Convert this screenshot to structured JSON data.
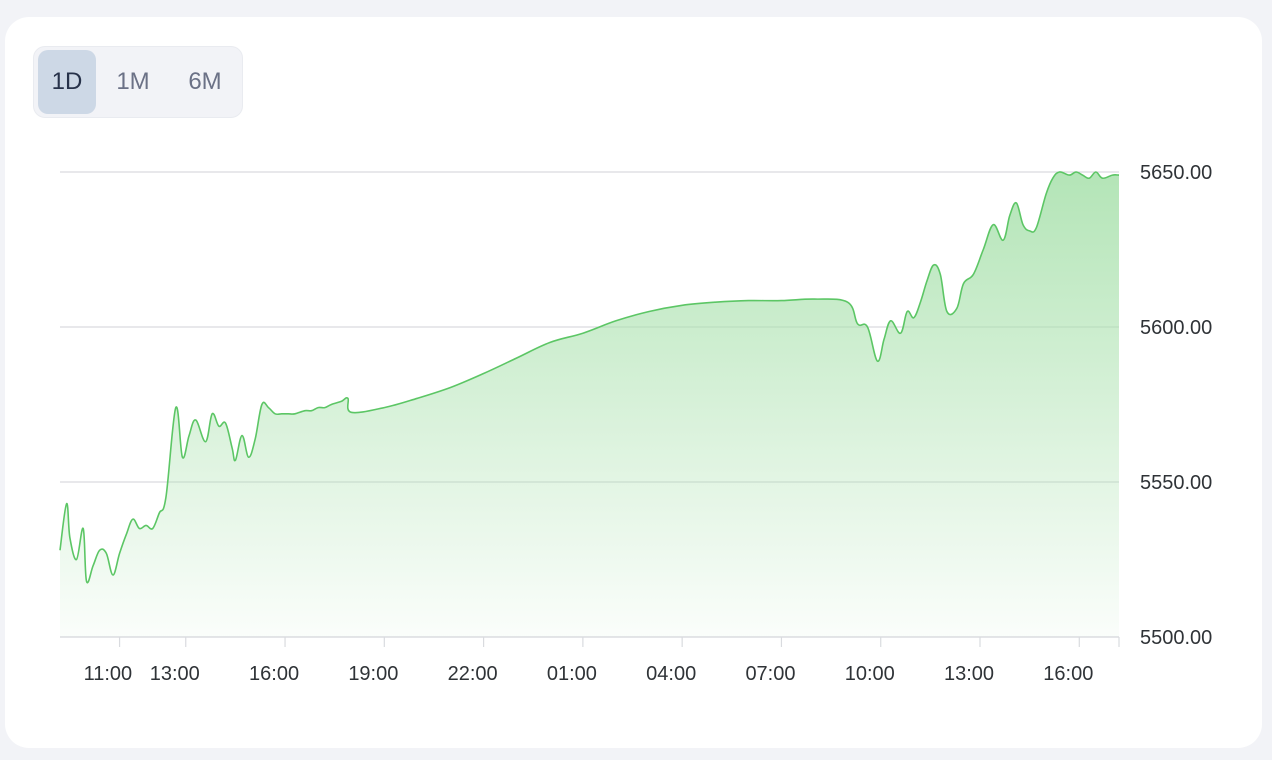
{
  "range_toggle": {
    "options": [
      "1D",
      "1M",
      "6M"
    ],
    "selected": "1D"
  },
  "colors": {
    "line": "#5cc665",
    "fill_top": "#a6e0aa",
    "grid": "#d9dbdf",
    "axis": "#d9dbdf"
  },
  "chart_data": {
    "type": "area",
    "title": "",
    "xlabel": "",
    "ylabel": "",
    "ylim": [
      5500,
      5650
    ],
    "y_ticks": [
      "5650.00",
      "5600.00",
      "5550.00",
      "5500.00"
    ],
    "y_tick_values": [
      5650,
      5600,
      5550,
      5500
    ],
    "y_axis_position": "right",
    "grid": true,
    "x_ticks": [
      "11:00",
      "13:00",
      "16:00",
      "19:00",
      "22:00",
      "01:00",
      "04:00",
      "07:00",
      "10:00",
      "13:00",
      "16:00"
    ],
    "x_tick_hours": [
      11,
      13,
      16,
      19,
      22,
      25,
      28,
      31,
      34,
      37,
      40
    ],
    "x_range_hours": [
      9.2,
      41.2
    ],
    "series": [
      {
        "x": [
          9.2,
          9.4,
          9.5,
          9.7,
          9.9,
          10.0,
          10.2,
          10.4,
          10.6,
          10.8,
          11.0,
          11.2,
          11.4,
          11.6,
          11.8,
          12.0,
          12.2,
          12.4,
          12.7,
          12.9,
          13.1,
          13.3,
          13.6,
          13.8,
          14.0,
          14.2,
          14.4,
          14.5,
          14.7,
          14.9,
          15.1,
          15.3,
          15.5,
          15.7,
          15.9,
          16.1,
          16.3,
          16.6,
          16.8,
          17.0,
          17.2,
          17.4,
          17.7,
          17.9,
          18.0,
          19.0,
          20.0,
          21.0,
          22.0,
          23.0,
          24.0,
          25.0,
          26.0,
          27.0,
          28.0,
          29.0,
          30.0,
          31.0,
          32.0,
          33.0,
          33.3,
          33.6,
          33.9,
          34.1,
          34.3,
          34.6,
          34.8,
          35.0,
          35.2,
          35.4,
          35.6,
          35.8,
          36.0,
          36.3,
          36.5,
          36.8,
          37.1,
          37.4,
          37.7,
          37.9,
          38.1,
          38.3,
          38.5,
          38.7,
          39.0,
          39.2,
          39.4,
          39.7,
          39.9,
          40.1,
          40.3,
          40.5,
          40.7,
          41.0,
          41.2
        ],
        "values": [
          5528,
          5543,
          5532,
          5525,
          5535,
          5518,
          5523,
          5528,
          5527,
          5520,
          5527,
          5533,
          5538,
          5535,
          5536,
          5535,
          5540,
          5545,
          5574,
          5558,
          5565,
          5570,
          5563,
          5572,
          5568,
          5569,
          5561,
          5557,
          5565,
          5558,
          5564,
          5575,
          5574,
          5572,
          5572,
          5572,
          5572,
          5573,
          5573,
          5574,
          5574,
          5575,
          5576,
          5577,
          5572.5,
          5574,
          5577,
          5580.5,
          5585,
          5590,
          5595,
          5598,
          5602,
          5605,
          5607,
          5608,
          5608.5,
          5608.5,
          5609,
          5608,
          5601,
          5600,
          5589,
          5596,
          5602,
          5598,
          5605,
          5603,
          5608,
          5615,
          5620,
          5617,
          5605,
          5606,
          5614,
          5617,
          5625,
          5633,
          5628,
          5636,
          5640,
          5633,
          5631,
          5632,
          5643,
          5648,
          5650,
          5649,
          5650,
          5649,
          5648,
          5650,
          5648,
          5649,
          5649
        ]
      }
    ]
  }
}
